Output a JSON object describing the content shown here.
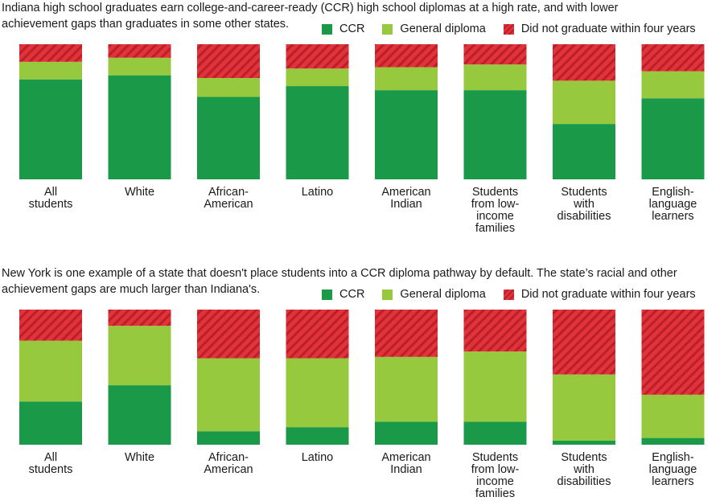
{
  "colors": {
    "ccr": "#1a9a49",
    "general": "#96c93d",
    "dropout": "#e2323a",
    "dropout_stripe": "#b9202a"
  },
  "legend": [
    {
      "key": "ccr",
      "label": "CCR",
      "icon": "green-square"
    },
    {
      "key": "general",
      "label": "General diploma",
      "icon": "light-green-square"
    },
    {
      "key": "dropout",
      "label": "Did not graduate within four years",
      "icon": "red-striped-square"
    }
  ],
  "chart_data": [
    {
      "type": "bar",
      "stacked": true,
      "title": "Indiana high school graduates earn college-and-career-ready (CCR) high school diplomas at a high rate, and with lower achievement gaps than graduates in some other states.",
      "categories": [
        [
          "All",
          "students"
        ],
        [
          "White"
        ],
        [
          "African-",
          "American"
        ],
        [
          "Latino"
        ],
        [
          "American",
          "Indian"
        ],
        [
          "Students",
          "from low-",
          "income",
          "families"
        ],
        [
          "Students",
          "with",
          "disabilities"
        ],
        [
          "English-",
          "language",
          "learners"
        ]
      ],
      "series": [
        {
          "name": "CCR",
          "key": "ccr",
          "values": [
            74,
            77,
            61,
            69,
            66,
            66,
            41,
            60
          ]
        },
        {
          "name": "General diploma",
          "key": "general",
          "values": [
            13,
            13,
            14,
            13,
            17,
            19,
            32,
            20
          ]
        },
        {
          "name": "Did not graduate within four years",
          "key": "dropout",
          "values": [
            13,
            10,
            25,
            18,
            17,
            15,
            27,
            20
          ]
        }
      ],
      "ylim": [
        0,
        100
      ],
      "xlabel": "",
      "ylabel": ""
    },
    {
      "type": "bar",
      "stacked": true,
      "title": "New York is one example of a state that doesn't place students into a CCR diploma pathway by default. The state’s racial and other achievement gaps are much larger than Indiana's.",
      "categories": [
        [
          "All",
          "students"
        ],
        [
          "White"
        ],
        [
          "African-",
          "American"
        ],
        [
          "Latino"
        ],
        [
          "American",
          "Indian"
        ],
        [
          "Students",
          "from low-",
          "income",
          "families"
        ],
        [
          "Students",
          "with",
          "disabilities"
        ],
        [
          "English-",
          "language",
          "learners"
        ]
      ],
      "series": [
        {
          "name": "CCR",
          "key": "ccr",
          "values": [
            32,
            44,
            10,
            13,
            17,
            17,
            3,
            5
          ]
        },
        {
          "name": "General diploma",
          "key": "general",
          "values": [
            45,
            44,
            54,
            51,
            48,
            52,
            49,
            32
          ]
        },
        {
          "name": "Did not graduate within four years",
          "key": "dropout",
          "values": [
            23,
            12,
            36,
            36,
            35,
            31,
            48,
            63
          ]
        }
      ],
      "ylim": [
        0,
        100
      ],
      "xlabel": "",
      "ylabel": ""
    }
  ]
}
